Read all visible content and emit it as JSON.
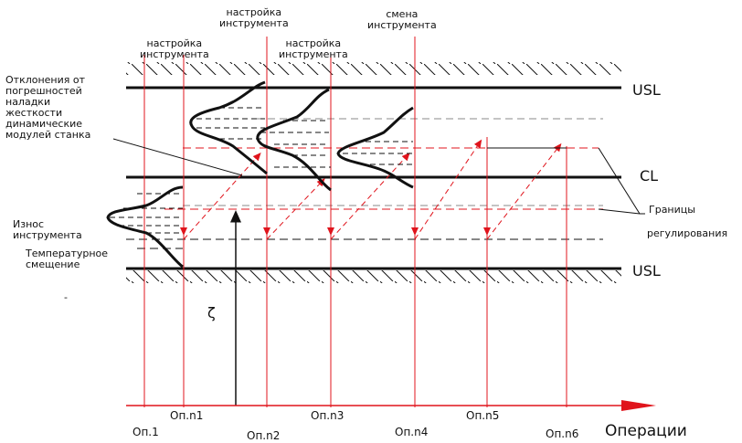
{
  "limits": {
    "upper": "USL",
    "center": "CL",
    "lower": "USL"
  },
  "top_labels": {
    "adj1": "настройка\nинструмента",
    "adj2": "настройка\nинструмента",
    "adj3": "настройка\nинструмента",
    "change": "смена\nинструмента"
  },
  "left_labels": {
    "deviations": "Отклонения от\nпогрешностей\nналадки\nжесткости\nдинамические\nмодулей станка",
    "wear": "Износ\nинструмента",
    "thermal": "Температурное\nсмещение"
  },
  "right_label": {
    "line1": "Границы",
    "line2": "регулирования"
  },
  "delta_symbol": "ζ",
  "stray_mark": "-",
  "axis": {
    "ticks": [
      "Оп.1",
      "Оп.n1",
      "Оп.n2",
      "Оп.n3",
      "Оп.n4",
      "Оп.n5",
      "Оп.n6"
    ],
    "title": "Операции"
  },
  "colors": {
    "black": "#111111",
    "red": "#e0141c",
    "gray": "#888888"
  }
}
